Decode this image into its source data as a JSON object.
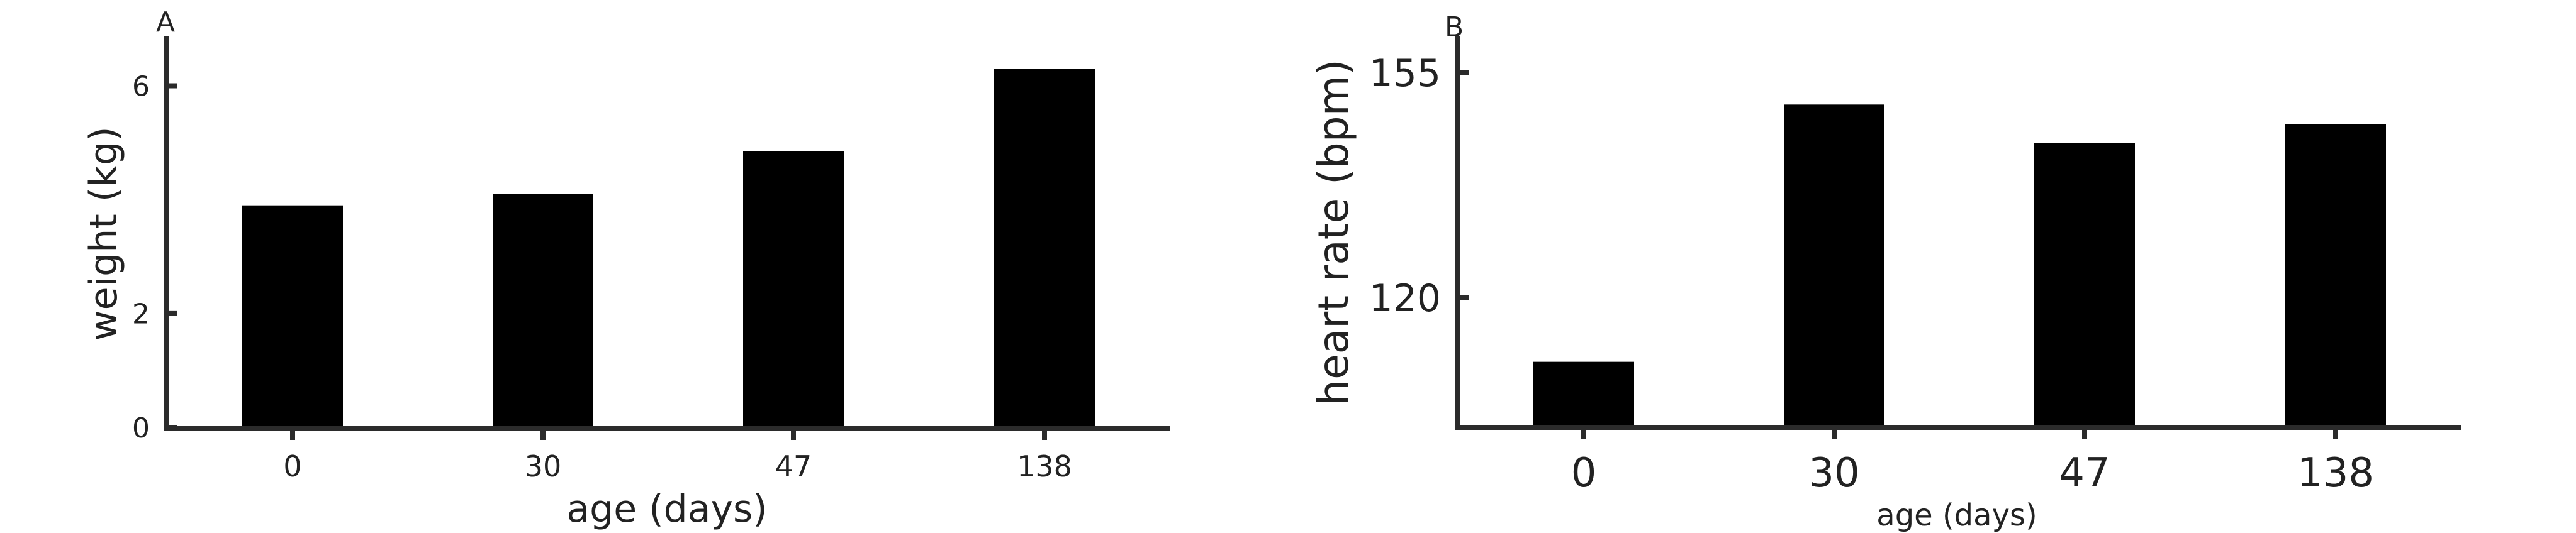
{
  "chart_data": [
    {
      "type": "bar",
      "panel_label": "A",
      "categories": [
        "0",
        "30",
        "47",
        "138"
      ],
      "values": [
        3.9,
        4.1,
        4.85,
        6.3
      ],
      "xlabel": "age (days)",
      "ylabel": "weight (kg)",
      "ylim": [
        0,
        6.8
      ],
      "yticks": [
        0,
        2,
        6
      ],
      "grid": false,
      "colors": {
        "bar": "#000000",
        "axis": "#2b2b2b"
      }
    },
    {
      "type": "bar",
      "panel_label": "B",
      "categories": [
        "0",
        "30",
        "47",
        "138"
      ],
      "values": [
        110,
        150,
        144,
        147
      ],
      "xlabel": "age (days)",
      "ylabel": "heart rate (bpm)",
      "ylim": [
        100,
        160
      ],
      "yticks": [
        120,
        155
      ],
      "grid": false,
      "colors": {
        "bar": "#000000",
        "axis": "#2b2b2b"
      }
    }
  ]
}
